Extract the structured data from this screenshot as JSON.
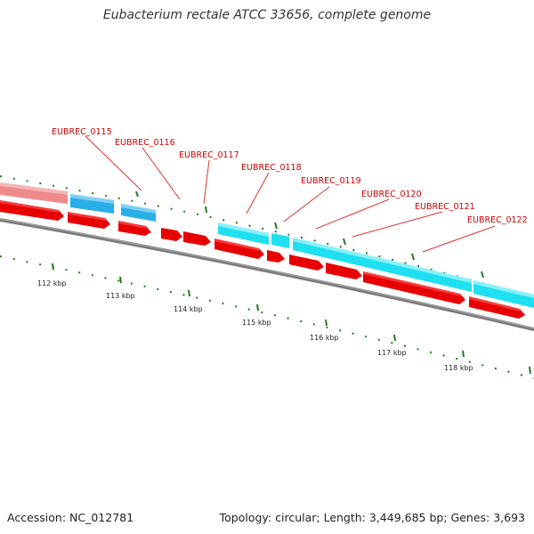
{
  "header": {
    "title": "Eubacterium rectale ATCC 33656, complete genome"
  },
  "footer": {
    "accession": "Accession: NC_012781",
    "stats": "Topology: circular; Length: 3,449,685 bp; Genes: 3,693"
  },
  "scale_labels": [
    "112 kbp",
    "113 kbp",
    "114 kbp",
    "115 kbp",
    "116 kbp",
    "117 kbp",
    "118 kbp"
  ],
  "gene_labels": [
    "EUBREC_0115",
    "EUBREC_0116",
    "EUBREC_0117",
    "EUBREC_0118",
    "EUBREC_0119",
    "EUBREC_0120",
    "EUBREC_0121",
    "EUBREC_0122"
  ],
  "colors": {
    "backbone": "#7a7a7a",
    "cds": "#e80000",
    "cds_faded": "#ee8a8a",
    "gene_blue": "#2aaee8",
    "gene_cyan": "#1ee0f0",
    "label": "#cc0000",
    "tick": "#1f7a1f"
  }
}
